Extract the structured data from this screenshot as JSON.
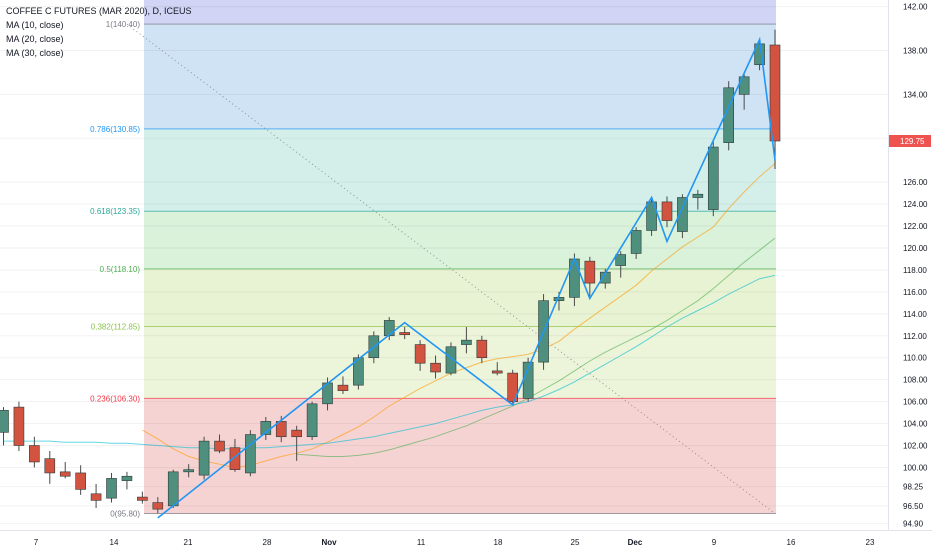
{
  "header": {
    "title": "COFFEE C FUTURES (MAR 2020), D, ICEUS",
    "indicators": [
      "MA (10, close)",
      "MA (20, close)",
      "MA (30, close)"
    ]
  },
  "price_badge": {
    "value": "129.75",
    "color": "#ef5350"
  },
  "chart_data": {
    "type": "candlestick",
    "x_tick_labels": [
      "7",
      "14",
      "21",
      "28",
      "Nov",
      "11",
      "18",
      "25",
      "Dec",
      "9",
      "16",
      "23"
    ],
    "y_tick_labels": [
      "94.90",
      "96.50",
      "98.25",
      "100.00",
      "102.00",
      "104.00",
      "106.00",
      "108.00",
      "110.00",
      "112.00",
      "114.00",
      "116.00",
      "118.00",
      "120.00",
      "122.00",
      "124.00",
      "126.00",
      "130.00",
      "134.00",
      "138.00",
      "142.00"
    ],
    "ylim": [
      94.3,
      142.6
    ],
    "last_price": 129.75,
    "fib_levels": [
      {
        "label": "1(140.40)",
        "value": 140.4,
        "color": "#787b86",
        "fill": "#dcdcdc"
      },
      {
        "label": "0.786(130.85)",
        "value": 130.85,
        "color": "#2196f3",
        "fill": "#cfe3f5"
      },
      {
        "label": "0.618(123.35)",
        "value": 123.35,
        "color": "#26a69a",
        "fill": "#d4efea"
      },
      {
        "label": "0.5(118.10)",
        "value": 118.1,
        "color": "#4caf50",
        "fill": "#daf1da"
      },
      {
        "label": "0.382(112.85)",
        "value": 112.85,
        "color": "#8bc34a",
        "fill": "#e8f3d3"
      },
      {
        "label": "0.236(106.30)",
        "value": 106.3,
        "color": "#f23645",
        "fill": "#ecf4da"
      },
      {
        "label": "0(95.80)",
        "value": 95.8,
        "color": "#787b86",
        "fill": "#f6d3d3"
      }
    ],
    "fib_top_band_fill": "#d1d4f4",
    "candles": [
      {
        "o": 103.2,
        "h": 105.5,
        "l": 102.0,
        "c": 105.2
      },
      {
        "o": 105.5,
        "h": 106.0,
        "l": 101.5,
        "c": 102.0
      },
      {
        "o": 102.0,
        "h": 102.8,
        "l": 100.0,
        "c": 100.5
      },
      {
        "o": 100.8,
        "h": 101.5,
        "l": 98.5,
        "c": 99.5
      },
      {
        "o": 99.6,
        "h": 100.5,
        "l": 99.0,
        "c": 99.2
      },
      {
        "o": 99.5,
        "h": 100.2,
        "l": 97.5,
        "c": 98.0
      },
      {
        "o": 97.6,
        "h": 98.5,
        "l": 96.3,
        "c": 97.0
      },
      {
        "o": 97.2,
        "h": 99.5,
        "l": 96.8,
        "c": 99.0
      },
      {
        "o": 98.8,
        "h": 99.6,
        "l": 98.0,
        "c": 99.2
      },
      {
        "o": 97.3,
        "h": 97.8,
        "l": 96.7,
        "c": 97.0
      },
      {
        "o": 96.8,
        "h": 97.3,
        "l": 95.8,
        "c": 96.2
      },
      {
        "o": 96.5,
        "h": 99.8,
        "l": 96.3,
        "c": 99.6
      },
      {
        "o": 99.6,
        "h": 100.3,
        "l": 99.1,
        "c": 99.8
      },
      {
        "o": 99.3,
        "h": 102.8,
        "l": 98.9,
        "c": 102.4
      },
      {
        "o": 102.4,
        "h": 103.0,
        "l": 101.3,
        "c": 101.5
      },
      {
        "o": 101.8,
        "h": 102.6,
        "l": 99.6,
        "c": 99.8
      },
      {
        "o": 99.5,
        "h": 103.4,
        "l": 99.2,
        "c": 103.0
      },
      {
        "o": 103.0,
        "h": 104.6,
        "l": 102.5,
        "c": 104.2
      },
      {
        "o": 104.2,
        "h": 104.7,
        "l": 102.3,
        "c": 102.8
      },
      {
        "o": 103.4,
        "h": 103.8,
        "l": 100.6,
        "c": 102.8
      },
      {
        "o": 102.8,
        "h": 106.0,
        "l": 102.5,
        "c": 105.8
      },
      {
        "o": 105.8,
        "h": 108.2,
        "l": 105.2,
        "c": 107.7
      },
      {
        "o": 107.5,
        "h": 108.3,
        "l": 106.7,
        "c": 107.0
      },
      {
        "o": 107.5,
        "h": 110.3,
        "l": 107.1,
        "c": 110.0
      },
      {
        "o": 110.0,
        "h": 112.4,
        "l": 109.5,
        "c": 112.0
      },
      {
        "o": 112.0,
        "h": 113.7,
        "l": 111.6,
        "c": 113.4
      },
      {
        "o": 112.3,
        "h": 112.8,
        "l": 111.7,
        "c": 112.1
      },
      {
        "o": 111.2,
        "h": 111.6,
        "l": 108.8,
        "c": 109.5
      },
      {
        "o": 109.5,
        "h": 110.2,
        "l": 108.1,
        "c": 108.7
      },
      {
        "o": 108.6,
        "h": 111.4,
        "l": 108.4,
        "c": 111.0
      },
      {
        "o": 111.2,
        "h": 112.8,
        "l": 110.4,
        "c": 111.6
      },
      {
        "o": 111.6,
        "h": 112.0,
        "l": 109.5,
        "c": 110.0
      },
      {
        "o": 108.8,
        "h": 109.6,
        "l": 108.4,
        "c": 108.6
      },
      {
        "o": 108.6,
        "h": 108.9,
        "l": 105.7,
        "c": 106.0
      },
      {
        "o": 106.3,
        "h": 110.0,
        "l": 106.0,
        "c": 109.6
      },
      {
        "o": 109.6,
        "h": 115.8,
        "l": 108.9,
        "c": 115.2
      },
      {
        "o": 115.2,
        "h": 116.0,
        "l": 114.3,
        "c": 115.5
      },
      {
        "o": 115.5,
        "h": 119.5,
        "l": 114.7,
        "c": 119.0
      },
      {
        "o": 118.8,
        "h": 119.2,
        "l": 115.6,
        "c": 116.8
      },
      {
        "o": 116.8,
        "h": 118.1,
        "l": 116.3,
        "c": 117.8
      },
      {
        "o": 118.4,
        "h": 119.7,
        "l": 117.3,
        "c": 119.4
      },
      {
        "o": 119.5,
        "h": 121.9,
        "l": 119.0,
        "c": 121.6
      },
      {
        "o": 121.6,
        "h": 124.6,
        "l": 121.1,
        "c": 124.2
      },
      {
        "o": 124.2,
        "h": 124.7,
        "l": 121.9,
        "c": 122.5
      },
      {
        "o": 121.5,
        "h": 124.9,
        "l": 120.9,
        "c": 124.6
      },
      {
        "o": 124.6,
        "h": 125.3,
        "l": 123.5,
        "c": 124.9
      },
      {
        "o": 123.5,
        "h": 129.7,
        "l": 122.9,
        "c": 129.2
      },
      {
        "o": 129.6,
        "h": 135.2,
        "l": 128.9,
        "c": 134.6
      },
      {
        "o": 134.0,
        "h": 135.9,
        "l": 132.6,
        "c": 135.6
      },
      {
        "o": 136.7,
        "h": 138.9,
        "l": 136.2,
        "c": 138.6
      },
      {
        "o": 138.5,
        "h": 139.9,
        "l": 127.2,
        "c": 129.75
      }
    ],
    "moving_averages": [
      {
        "name": "MA (10, close)",
        "color": "#ff9800",
        "values": [
          null,
          null,
          null,
          null,
          null,
          null,
          null,
          null,
          null,
          103.4,
          102.6,
          101.7,
          101.0,
          100.6,
          100.3,
          100.0,
          100.2,
          100.6,
          101.0,
          101.3,
          101.7,
          102.3,
          103.0,
          103.7,
          104.6,
          105.6,
          106.4,
          107.2,
          107.9,
          108.6,
          109.1,
          109.6,
          109.9,
          110.1,
          110.3,
          110.8,
          111.5,
          112.6,
          113.6,
          114.6,
          115.6,
          116.6,
          117.9,
          119.0,
          120.1,
          121.0,
          121.9,
          123.6,
          125.1,
          126.5,
          127.7
        ]
      },
      {
        "name": "MA (20, close)",
        "color": "#4caf50",
        "values": [
          null,
          null,
          null,
          null,
          null,
          null,
          null,
          null,
          null,
          null,
          null,
          null,
          null,
          null,
          null,
          null,
          null,
          null,
          null,
          101.2,
          101.1,
          101.0,
          101.0,
          101.1,
          101.3,
          101.6,
          102.0,
          102.4,
          102.8,
          103.3,
          103.8,
          104.4,
          105.0,
          105.6,
          106.3,
          107.1,
          107.9,
          108.8,
          109.7,
          110.5,
          111.2,
          111.9,
          112.6,
          113.4,
          114.3,
          115.2,
          116.3,
          117.5,
          118.7,
          119.8,
          120.9
        ]
      },
      {
        "name": "MA (30, close)",
        "color": "#00bcd4",
        "values": [
          102.4,
          102.4,
          102.4,
          102.4,
          102.3,
          102.3,
          102.3,
          102.2,
          102.2,
          102.1,
          102.0,
          101.9,
          101.8,
          101.8,
          101.7,
          101.7,
          101.8,
          101.8,
          101.9,
          102.0,
          102.1,
          102.2,
          102.4,
          102.6,
          102.8,
          103.1,
          103.4,
          103.7,
          104.0,
          104.4,
          104.8,
          105.2,
          105.5,
          105.7,
          106.0,
          106.5,
          107.1,
          107.8,
          108.6,
          109.4,
          110.2,
          111.0,
          111.9,
          112.8,
          113.6,
          114.3,
          115.0,
          115.8,
          116.5,
          117.2,
          117.5
        ]
      }
    ],
    "zigzag": [
      [
        10,
        95.4
      ],
      [
        26,
        113.2
      ],
      [
        33,
        105.7
      ],
      [
        37,
        119.0
      ],
      [
        38,
        115.4
      ],
      [
        42,
        124.6
      ],
      [
        43,
        120.6
      ],
      [
        49,
        139.0
      ],
      [
        50,
        128.0
      ]
    ],
    "zigzag_color": "#2196f3",
    "fib_trend_line": [
      [
        8,
        140.4
      ],
      [
        50,
        95.8
      ]
    ]
  }
}
